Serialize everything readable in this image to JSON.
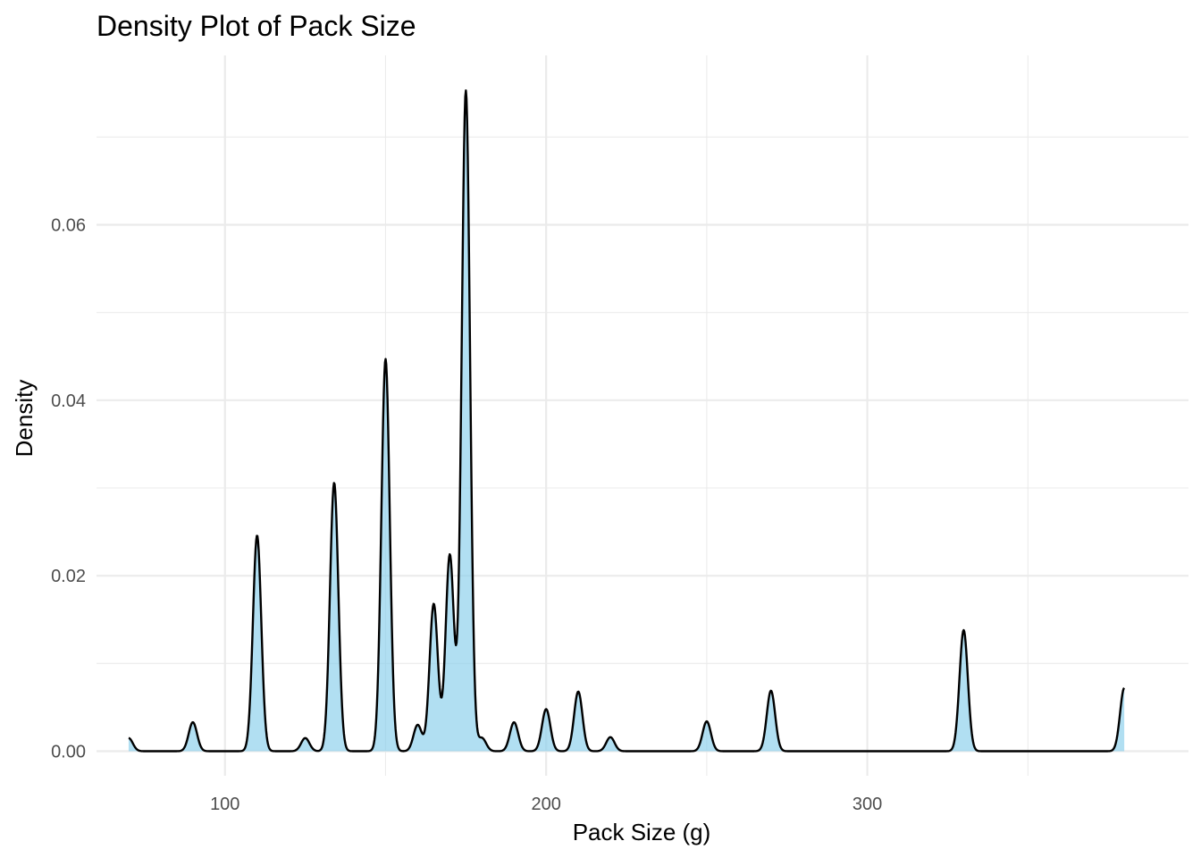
{
  "chart_data": {
    "type": "area",
    "title": "Density Plot of Pack Size",
    "xlabel": "Pack Size (g)",
    "ylabel": "Density",
    "x_ticks": [
      100,
      200,
      300
    ],
    "y_ticks": [
      "0.00",
      "0.02",
      "0.04",
      "0.06"
    ],
    "xlim": [
      60,
      400
    ],
    "ylim": [
      -0.0028,
      0.0793
    ],
    "grid": true,
    "legend": "none",
    "fill_color": "#87ceeb",
    "line_color": "#000000",
    "x_range": [
      70,
      380
    ],
    "components": [
      {
        "mu": 70,
        "amp": 0.0015,
        "sd": 1.3
      },
      {
        "mu": 90,
        "amp": 0.0033,
        "sd": 1.3
      },
      {
        "mu": 110,
        "amp": 0.0246,
        "sd": 1.3
      },
      {
        "mu": 125,
        "amp": 0.0015,
        "sd": 1.3
      },
      {
        "mu": 134,
        "amp": 0.0306,
        "sd": 1.3
      },
      {
        "mu": 150,
        "amp": 0.0447,
        "sd": 1.3
      },
      {
        "mu": 160,
        "amp": 0.003,
        "sd": 1.3
      },
      {
        "mu": 165,
        "amp": 0.0168,
        "sd": 1.3
      },
      {
        "mu": 170,
        "amp": 0.0224,
        "sd": 1.3
      },
      {
        "mu": 175,
        "amp": 0.0753,
        "sd": 1.3
      },
      {
        "mu": 180,
        "amp": 0.0015,
        "sd": 1.3
      },
      {
        "mu": 190,
        "amp": 0.0033,
        "sd": 1.3
      },
      {
        "mu": 200,
        "amp": 0.0048,
        "sd": 1.3
      },
      {
        "mu": 210,
        "amp": 0.0068,
        "sd": 1.3
      },
      {
        "mu": 220,
        "amp": 0.0016,
        "sd": 1.3
      },
      {
        "mu": 250,
        "amp": 0.0034,
        "sd": 1.3
      },
      {
        "mu": 270,
        "amp": 0.0069,
        "sd": 1.3
      },
      {
        "mu": 330,
        "amp": 0.0138,
        "sd": 1.3
      },
      {
        "mu": 380,
        "amp": 0.0072,
        "sd": 1.3
      }
    ]
  }
}
